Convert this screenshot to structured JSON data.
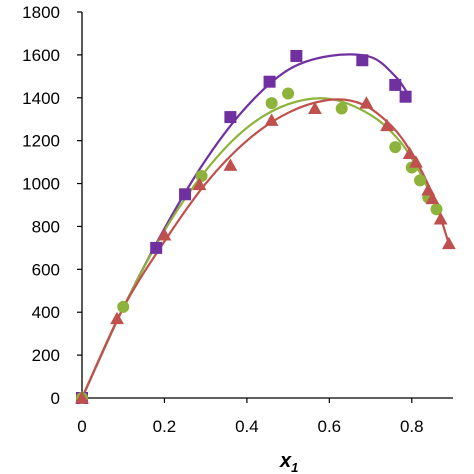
{
  "chart_data": {
    "type": "scatter",
    "title": "",
    "xlabel": "x",
    "xlabel_subscript": "1",
    "ylabel": "",
    "xlim": [
      0,
      0.9
    ],
    "ylim": [
      0,
      1800
    ],
    "xticks": [
      "0",
      "0.2",
      "0.4",
      "0.6",
      "0.8"
    ],
    "yticks": [
      "0",
      "200",
      "400",
      "600",
      "800",
      "1000",
      "1200",
      "1400",
      "1600",
      "1800"
    ],
    "grid": false,
    "legend": "none",
    "series": [
      {
        "marker": "square",
        "color": "#7030A0",
        "points": [
          [
            0,
            0
          ],
          [
            0.18,
            700
          ],
          [
            0.25,
            950
          ],
          [
            0.36,
            1310
          ],
          [
            0.455,
            1475
          ],
          [
            0.52,
            1595
          ],
          [
            0.68,
            1575
          ],
          [
            0.76,
            1460
          ],
          [
            0.785,
            1405
          ]
        ],
        "fit": [
          [
            0,
            0
          ],
          [
            0.1,
            420
          ],
          [
            0.2,
            790
          ],
          [
            0.3,
            1110
          ],
          [
            0.4,
            1360
          ],
          [
            0.5,
            1530
          ],
          [
            0.6,
            1595
          ],
          [
            0.7,
            1590
          ],
          [
            0.76,
            1500
          ],
          [
            0.79,
            1420
          ]
        ]
      },
      {
        "marker": "circle",
        "color": "#8DB33A",
        "points": [
          [
            0,
            0
          ],
          [
            0.1,
            425
          ],
          [
            0.29,
            1035
          ],
          [
            0.46,
            1375
          ],
          [
            0.5,
            1420
          ],
          [
            0.63,
            1350
          ],
          [
            0.76,
            1170
          ],
          [
            0.8,
            1075
          ],
          [
            0.82,
            1015
          ],
          [
            0.84,
            935
          ],
          [
            0.86,
            880
          ]
        ],
        "fit": [
          [
            0,
            0
          ],
          [
            0.1,
            420
          ],
          [
            0.2,
            780
          ],
          [
            0.3,
            1060
          ],
          [
            0.4,
            1260
          ],
          [
            0.5,
            1370
          ],
          [
            0.6,
            1395
          ],
          [
            0.7,
            1320
          ],
          [
            0.77,
            1200
          ],
          [
            0.82,
            1050
          ],
          [
            0.86,
            890
          ]
        ]
      },
      {
        "marker": "triangle",
        "color": "#C0504D",
        "points": [
          [
            0,
            0
          ],
          [
            0.085,
            370
          ],
          [
            0.2,
            760
          ],
          [
            0.285,
            995
          ],
          [
            0.36,
            1085
          ],
          [
            0.46,
            1295
          ],
          [
            0.565,
            1350
          ],
          [
            0.69,
            1375
          ],
          [
            0.74,
            1270
          ],
          [
            0.795,
            1140
          ],
          [
            0.81,
            1100
          ],
          [
            0.84,
            970
          ],
          [
            0.85,
            930
          ],
          [
            0.87,
            835
          ],
          [
            0.89,
            720
          ]
        ],
        "fit": [
          [
            0,
            0
          ],
          [
            0.1,
            420
          ],
          [
            0.2,
            730
          ],
          [
            0.3,
            1000
          ],
          [
            0.4,
            1200
          ],
          [
            0.5,
            1330
          ],
          [
            0.6,
            1390
          ],
          [
            0.68,
            1370
          ],
          [
            0.75,
            1270
          ],
          [
            0.8,
            1140
          ],
          [
            0.85,
            950
          ],
          [
            0.89,
            720
          ]
        ]
      }
    ]
  }
}
